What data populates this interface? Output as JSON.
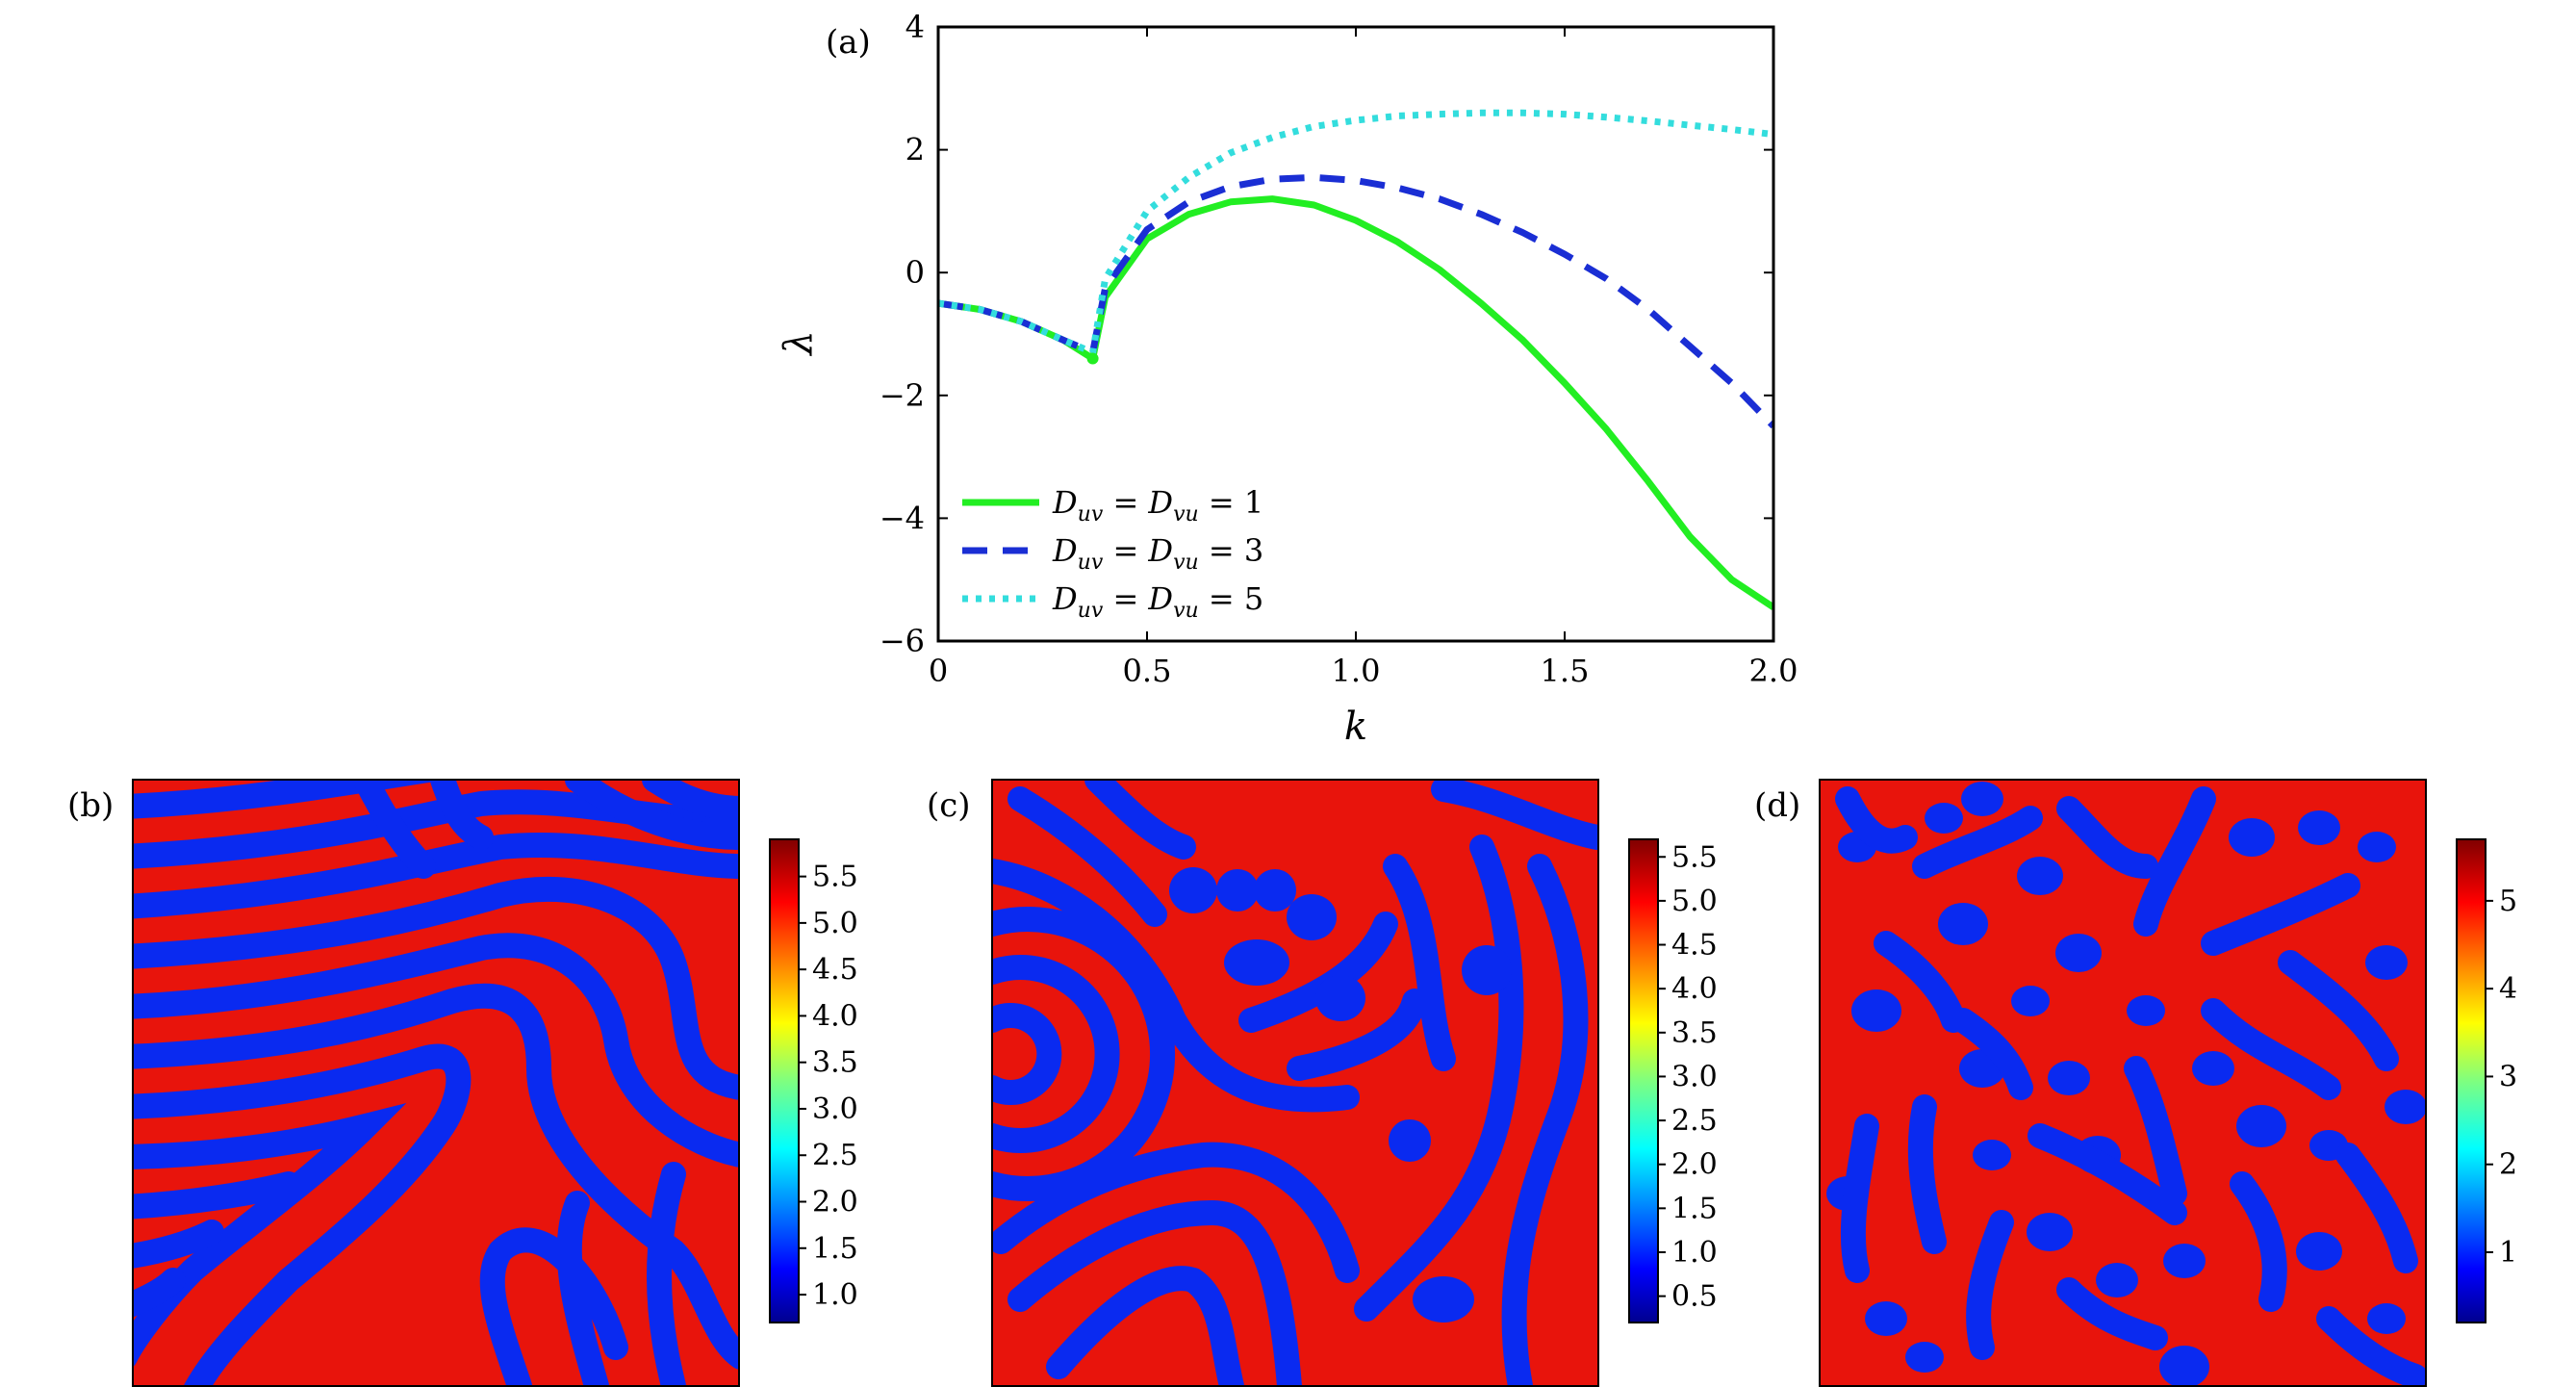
{
  "chart_data": [
    {
      "type": "line",
      "panel_label": "(a)",
      "xlabel": "k",
      "ylabel": "λ",
      "xlim": [
        0,
        2.0
      ],
      "ylim": [
        -6,
        4
      ],
      "xticks": [
        "0",
        "0.5",
        "1.0",
        "1.5",
        "2.0"
      ],
      "yticks": [
        "−6",
        "−4",
        "−2",
        "0",
        "2",
        "4"
      ],
      "legend_position": "lower-left",
      "series": [
        {
          "name": "Duv = Dvu = 1",
          "color": "#22ee22",
          "style": "solid",
          "x": [
            0,
            0.1,
            0.2,
            0.3,
            0.37,
            0.4,
            0.5,
            0.6,
            0.7,
            0.8,
            0.9,
            1.0,
            1.1,
            1.2,
            1.3,
            1.4,
            1.5,
            1.6,
            1.7,
            1.8,
            1.9,
            2.0
          ],
          "y": [
            -0.5,
            -0.6,
            -0.8,
            -1.1,
            -1.4,
            -0.4,
            0.55,
            0.95,
            1.15,
            1.2,
            1.1,
            0.85,
            0.5,
            0.05,
            -0.5,
            -1.1,
            -1.8,
            -2.55,
            -3.4,
            -4.3,
            -5.0,
            -5.45
          ]
        },
        {
          "name": "Duv = Dvu = 3",
          "color": "#1a2ed4",
          "style": "dashed",
          "x": [
            0,
            0.1,
            0.2,
            0.3,
            0.37,
            0.4,
            0.5,
            0.6,
            0.7,
            0.8,
            0.9,
            1.0,
            1.1,
            1.2,
            1.3,
            1.4,
            1.5,
            1.6,
            1.7,
            1.8,
            1.9,
            2.0
          ],
          "y": [
            -0.5,
            -0.6,
            -0.8,
            -1.1,
            -1.3,
            -0.25,
            0.7,
            1.15,
            1.4,
            1.52,
            1.55,
            1.5,
            1.38,
            1.2,
            0.95,
            0.65,
            0.3,
            -0.1,
            -0.6,
            -1.2,
            -1.8,
            -2.5
          ]
        },
        {
          "name": "Duv = Dvu = 5",
          "color": "#33dddd",
          "style": "dotted",
          "x": [
            0,
            0.1,
            0.2,
            0.3,
            0.37,
            0.4,
            0.5,
            0.6,
            0.7,
            0.8,
            0.9,
            1.0,
            1.1,
            1.2,
            1.3,
            1.4,
            1.5,
            1.6,
            1.7,
            1.8,
            1.9,
            2.0
          ],
          "y": [
            -0.5,
            -0.6,
            -0.8,
            -1.1,
            -1.3,
            -0.1,
            1.0,
            1.55,
            1.95,
            2.2,
            2.38,
            2.48,
            2.55,
            2.58,
            2.6,
            2.6,
            2.58,
            2.53,
            2.47,
            2.4,
            2.33,
            2.25
          ]
        }
      ]
    },
    {
      "type": "heatmap",
      "panel_label": "(b)",
      "colorbar_ticks": [
        "1.0",
        "1.5",
        "2.0",
        "2.5",
        "3.0",
        "3.5",
        "4.0",
        "4.5",
        "5.0",
        "5.5"
      ],
      "colorbar_range": [
        0.7,
        5.9
      ]
    },
    {
      "type": "heatmap",
      "panel_label": "(c)",
      "colorbar_ticks": [
        "0.5",
        "1.0",
        "1.5",
        "2.0",
        "2.5",
        "3.0",
        "3.5",
        "4.0",
        "4.5",
        "5.0",
        "5.5"
      ],
      "colorbar_range": [
        0.2,
        5.7
      ]
    },
    {
      "type": "heatmap",
      "panel_label": "(d)",
      "colorbar_ticks": [
        "1",
        "2",
        "3",
        "4",
        "5"
      ],
      "colorbar_range": [
        0.2,
        5.7
      ]
    }
  ],
  "legend_text": {
    "sub_a": "uv",
    "sub_b": "vu",
    "D": "D",
    "eq": " = ",
    "vals": [
      "1",
      "3",
      "5"
    ]
  }
}
